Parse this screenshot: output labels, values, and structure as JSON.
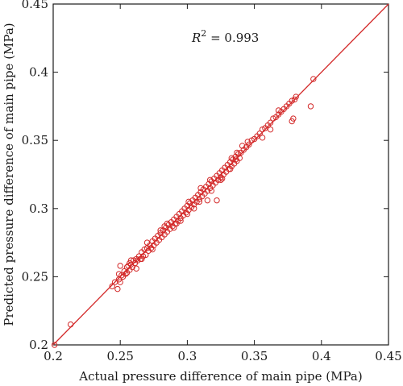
{
  "chart_data": {
    "type": "scatter",
    "title": "",
    "xlabel": "Actual pressure difference of main pipe (MPa)",
    "ylabel": "Predicted pressure difference of main pipe (MPa)",
    "xlim": [
      0.2,
      0.45
    ],
    "ylim": [
      0.2,
      0.45
    ],
    "xticks": [
      0.2,
      0.25,
      0.3,
      0.35,
      0.4,
      0.45
    ],
    "yticks": [
      0.2,
      0.25,
      0.3,
      0.35,
      0.4,
      0.45
    ],
    "xtick_labels": [
      "0.2",
      "0.25",
      "0.3",
      "0.35",
      "0.4",
      "0.45"
    ],
    "ytick_labels": [
      "0.2",
      "0.25",
      "0.3",
      "0.35",
      "0.4",
      "0.45"
    ],
    "grid": false,
    "annotation": {
      "base": "R",
      "sup": "2",
      "text": " = 0.993"
    },
    "reference_line": {
      "x": [
        0.2,
        0.45
      ],
      "y": [
        0.2,
        0.45
      ],
      "color": "#d32a2a"
    },
    "marker": {
      "shape": "open-circle",
      "color": "#d32a2a"
    },
    "series": [
      {
        "x": [
          0.201,
          0.213,
          0.244,
          0.246,
          0.248,
          0.249,
          0.25,
          0.251,
          0.252,
          0.253,
          0.254,
          0.255,
          0.255,
          0.256,
          0.257,
          0.258,
          0.259,
          0.26,
          0.261,
          0.262,
          0.263,
          0.264,
          0.265,
          0.266,
          0.267,
          0.268,
          0.269,
          0.27,
          0.271,
          0.272,
          0.273,
          0.274,
          0.275,
          0.276,
          0.277,
          0.278,
          0.279,
          0.28,
          0.281,
          0.282,
          0.283,
          0.284,
          0.285,
          0.286,
          0.287,
          0.288,
          0.289,
          0.29,
          0.291,
          0.292,
          0.293,
          0.294,
          0.295,
          0.296,
          0.297,
          0.298,
          0.299,
          0.3,
          0.301,
          0.302,
          0.303,
          0.304,
          0.305,
          0.306,
          0.307,
          0.308,
          0.309,
          0.31,
          0.311,
          0.312,
          0.313,
          0.314,
          0.315,
          0.316,
          0.317,
          0.318,
          0.319,
          0.32,
          0.321,
          0.322,
          0.323,
          0.324,
          0.325,
          0.326,
          0.327,
          0.328,
          0.329,
          0.33,
          0.331,
          0.332,
          0.333,
          0.334,
          0.335,
          0.336,
          0.337,
          0.338,
          0.339,
          0.34,
          0.342,
          0.344,
          0.346,
          0.348,
          0.35,
          0.352,
          0.354,
          0.356,
          0.358,
          0.36,
          0.362,
          0.364,
          0.366,
          0.368,
          0.37,
          0.372,
          0.374,
          0.376,
          0.378,
          0.38,
          0.381,
          0.378,
          0.379,
          0.392,
          0.394,
          0.25,
          0.258,
          0.262,
          0.27,
          0.285,
          0.295,
          0.305,
          0.318,
          0.326,
          0.337,
          0.345,
          0.3,
          0.31,
          0.315,
          0.28,
          0.29,
          0.332,
          0.341,
          0.356,
          0.362,
          0.368,
          0.249,
          0.257,
          0.266,
          0.274,
          0.283,
          0.292,
          0.301,
          0.309,
          0.317,
          0.325,
          0.333,
          0.322,
          0.336
        ],
        "y": [
          0.2,
          0.215,
          0.243,
          0.246,
          0.241,
          0.248,
          0.246,
          0.251,
          0.25,
          0.254,
          0.252,
          0.257,
          0.253,
          0.258,
          0.255,
          0.259,
          0.257,
          0.262,
          0.26,
          0.263,
          0.262,
          0.265,
          0.263,
          0.268,
          0.265,
          0.27,
          0.266,
          0.271,
          0.269,
          0.273,
          0.271,
          0.276,
          0.273,
          0.278,
          0.275,
          0.28,
          0.277,
          0.282,
          0.279,
          0.284,
          0.281,
          0.286,
          0.283,
          0.288,
          0.285,
          0.29,
          0.287,
          0.292,
          0.289,
          0.294,
          0.291,
          0.296,
          0.293,
          0.298,
          0.295,
          0.3,
          0.297,
          0.302,
          0.299,
          0.304,
          0.301,
          0.306,
          0.303,
          0.308,
          0.305,
          0.31,
          0.307,
          0.312,
          0.309,
          0.314,
          0.311,
          0.316,
          0.313,
          0.318,
          0.315,
          0.32,
          0.317,
          0.322,
          0.319,
          0.324,
          0.321,
          0.326,
          0.323,
          0.328,
          0.325,
          0.33,
          0.327,
          0.332,
          0.329,
          0.334,
          0.331,
          0.336,
          0.333,
          0.338,
          0.335,
          0.34,
          0.337,
          0.341,
          0.343,
          0.345,
          0.347,
          0.35,
          0.351,
          0.353,
          0.355,
          0.358,
          0.359,
          0.361,
          0.363,
          0.366,
          0.367,
          0.369,
          0.371,
          0.373,
          0.375,
          0.377,
          0.379,
          0.38,
          0.382,
          0.364,
          0.366,
          0.375,
          0.395,
          0.258,
          0.262,
          0.256,
          0.275,
          0.289,
          0.291,
          0.3,
          0.313,
          0.322,
          0.341,
          0.349,
          0.296,
          0.315,
          0.306,
          0.284,
          0.286,
          0.329,
          0.346,
          0.352,
          0.358,
          0.372,
          0.252,
          0.26,
          0.263,
          0.27,
          0.287,
          0.289,
          0.305,
          0.305,
          0.321,
          0.321,
          0.337,
          0.306,
          0.336
        ]
      }
    ]
  }
}
